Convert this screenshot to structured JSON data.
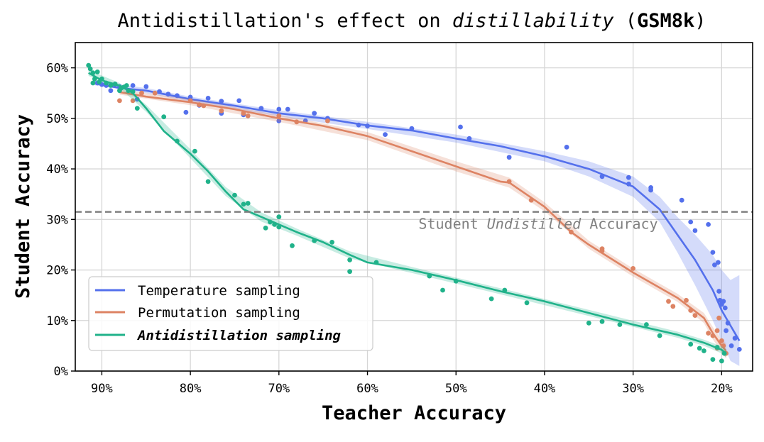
{
  "chart_data": {
    "type": "scatter",
    "title_parts": [
      "Antidistillation's effect on ",
      "distillability",
      " (",
      "GSM8k",
      ")"
    ],
    "xlabel": "Teacher Accuracy",
    "ylabel": "Student Accuracy",
    "xlim": [
      93,
      16.5
    ],
    "ylim": [
      0,
      65
    ],
    "x_ticks": [
      90,
      80,
      70,
      60,
      50,
      40,
      30,
      20
    ],
    "x_tick_labels": [
      "90%",
      "80%",
      "70%",
      "60%",
      "50%",
      "40%",
      "30%",
      "20%"
    ],
    "y_ticks": [
      0,
      10,
      20,
      30,
      40,
      50,
      60
    ],
    "y_tick_labels": [
      "0%",
      "10%",
      "20%",
      "30%",
      "40%",
      "50%",
      "60%"
    ],
    "grid": true,
    "legend_position": "lower-left",
    "reference_line": {
      "y": 31.5,
      "label_parts": [
        "Student ",
        "Undistilled",
        " Accuracy"
      ],
      "color": "#808080"
    },
    "series": [
      {
        "name": "Temperature sampling",
        "color": "#5470ec",
        "line": [
          [
            91,
            57
          ],
          [
            88,
            56
          ],
          [
            85,
            55.5
          ],
          [
            80,
            53.8
          ],
          [
            75,
            52.5
          ],
          [
            70,
            51
          ],
          [
            65,
            50
          ],
          [
            60,
            48.6
          ],
          [
            55,
            47.6
          ],
          [
            50,
            46
          ],
          [
            45,
            44.5
          ],
          [
            40,
            42.5
          ],
          [
            35,
            40
          ],
          [
            30,
            36.5
          ],
          [
            27,
            32
          ],
          [
            25,
            27
          ],
          [
            23,
            22
          ],
          [
            21,
            16
          ],
          [
            20,
            12
          ],
          [
            19,
            9
          ],
          [
            18,
            6
          ]
        ],
        "band": [
          [
            91,
            57.4,
            56.6
          ],
          [
            85,
            56,
            55
          ],
          [
            80,
            54.3,
            53.3
          ],
          [
            70,
            51.6,
            50.4
          ],
          [
            60,
            49.3,
            47.9
          ],
          [
            50,
            46.8,
            45.2
          ],
          [
            40,
            43.5,
            41.5
          ],
          [
            35,
            41.5,
            38.5
          ],
          [
            30,
            38.5,
            34.5
          ],
          [
            27,
            34.5,
            29.5
          ],
          [
            25,
            30.5,
            23.5
          ],
          [
            23,
            27,
            17
          ],
          [
            21,
            23,
            10
          ],
          [
            20,
            20,
            6
          ],
          [
            19,
            18,
            2
          ],
          [
            18,
            19,
            1
          ]
        ],
        "points": [
          [
            90.5,
            57
          ],
          [
            90,
            56.7
          ],
          [
            89.5,
            56.5
          ],
          [
            89,
            55.5
          ],
          [
            88.5,
            56.7
          ],
          [
            88,
            56.3
          ],
          [
            87,
            55.5
          ],
          [
            86.5,
            56.5
          ],
          [
            86,
            53.8
          ],
          [
            85,
            56.3
          ],
          [
            83.5,
            55.3
          ],
          [
            82.5,
            54.8
          ],
          [
            81.5,
            54.5
          ],
          [
            80.5,
            51.2
          ],
          [
            80,
            54.2
          ],
          [
            79,
            52.6
          ],
          [
            78,
            54
          ],
          [
            76.5,
            51
          ],
          [
            76.5,
            53.4
          ],
          [
            74.5,
            53.5
          ],
          [
            74,
            50.7
          ],
          [
            72,
            52
          ],
          [
            70,
            49.5
          ],
          [
            70,
            51.8
          ],
          [
            69,
            51.8
          ],
          [
            67,
            49.5
          ],
          [
            66,
            51
          ],
          [
            64.5,
            50
          ],
          [
            61,
            48.7
          ],
          [
            60,
            48.5
          ],
          [
            58,
            46.8
          ],
          [
            55,
            48
          ],
          [
            49.5,
            48.3
          ],
          [
            48.5,
            46
          ],
          [
            44,
            42.3
          ],
          [
            37.5,
            44.3
          ],
          [
            33.5,
            38.5
          ],
          [
            30.5,
            38.3
          ],
          [
            30.5,
            37
          ],
          [
            28,
            36.3
          ],
          [
            28,
            35.8
          ],
          [
            24.5,
            33.8
          ],
          [
            23.5,
            29.5
          ],
          [
            23,
            27.8
          ],
          [
            21.5,
            29
          ],
          [
            21,
            23.5
          ],
          [
            20.8,
            21
          ],
          [
            20.4,
            21.5
          ],
          [
            20.3,
            15.8
          ],
          [
            20.2,
            14
          ],
          [
            20,
            13.2
          ],
          [
            19.8,
            13.8
          ],
          [
            19.6,
            12.5
          ],
          [
            19.5,
            8
          ],
          [
            19.3,
            9.5
          ],
          [
            18.9,
            5
          ],
          [
            18.5,
            6.5
          ],
          [
            18,
            4.3
          ]
        ]
      },
      {
        "name": "Permutation sampling",
        "color": "#dd8363",
        "line": [
          [
            88,
            55.2
          ],
          [
            85,
            54.3
          ],
          [
            80,
            53.2
          ],
          [
            75,
            51.8
          ],
          [
            70,
            50
          ],
          [
            65,
            48.5
          ],
          [
            60,
            46.5
          ],
          [
            55,
            43.5
          ],
          [
            50,
            40.5
          ],
          [
            45,
            37.5
          ],
          [
            44,
            37.3
          ],
          [
            40,
            32.5
          ],
          [
            37,
            27.5
          ],
          [
            35,
            25
          ],
          [
            30,
            19.5
          ],
          [
            25,
            14.5
          ],
          [
            22,
            10.5
          ],
          [
            21,
            7.5
          ],
          [
            20,
            5
          ],
          [
            19.5,
            4
          ]
        ],
        "band": [
          [
            88,
            55.7,
            54.7
          ],
          [
            80,
            53.8,
            52.6
          ],
          [
            70,
            50.7,
            49.3
          ],
          [
            60,
            47.3,
            45.7
          ],
          [
            50,
            41.5,
            39.5
          ],
          [
            44,
            38.3,
            36.3
          ],
          [
            40,
            33.4,
            31.6
          ],
          [
            35,
            25.8,
            24.2
          ],
          [
            30,
            20.3,
            18.7
          ],
          [
            25,
            15.3,
            13.7
          ],
          [
            22,
            11.5,
            9.5
          ],
          [
            21,
            8.7,
            6.3
          ],
          [
            20,
            6.3,
            3.7
          ],
          [
            19.5,
            5.5,
            2.5
          ]
        ],
        "points": [
          [
            88,
            53.5
          ],
          [
            86.5,
            53.5
          ],
          [
            85.5,
            55
          ],
          [
            84,
            55
          ],
          [
            80,
            53.5
          ],
          [
            79,
            52.7
          ],
          [
            78.5,
            52.5
          ],
          [
            76.5,
            51.5
          ],
          [
            74,
            51
          ],
          [
            73.5,
            50.5
          ],
          [
            70,
            50.5
          ],
          [
            68,
            49.3
          ],
          [
            64.5,
            49.5
          ],
          [
            44,
            37.5
          ],
          [
            41.5,
            33.8
          ],
          [
            37,
            27.5
          ],
          [
            33.5,
            23.8
          ],
          [
            33.5,
            24.2
          ],
          [
            30,
            20.3
          ],
          [
            26,
            13.8
          ],
          [
            25.5,
            12.8
          ],
          [
            24,
            14
          ],
          [
            23.5,
            12
          ],
          [
            23,
            11
          ],
          [
            21.5,
            7.5
          ],
          [
            21,
            7
          ],
          [
            20.5,
            8
          ],
          [
            20.5,
            4.5
          ],
          [
            20.3,
            10.5
          ],
          [
            20,
            6
          ],
          [
            19.8,
            5
          ],
          [
            19.5,
            3.5
          ]
        ]
      },
      {
        "name": "Antidistillation sampling",
        "color": "#20b28a",
        "line": [
          [
            91.5,
            59
          ],
          [
            90,
            57.5
          ],
          [
            88,
            56.5
          ],
          [
            86.5,
            55
          ],
          [
            85,
            52
          ],
          [
            83,
            47.5
          ],
          [
            80,
            43
          ],
          [
            78,
            39.5
          ],
          [
            76,
            35.5
          ],
          [
            74,
            32
          ],
          [
            72,
            30.5
          ],
          [
            70,
            29
          ],
          [
            68,
            27.5
          ],
          [
            65,
            25.5
          ],
          [
            62,
            23
          ],
          [
            60,
            21.5
          ],
          [
            55,
            20
          ],
          [
            50,
            18
          ],
          [
            45,
            15.8
          ],
          [
            40,
            13.8
          ],
          [
            35,
            11.5
          ],
          [
            30,
            9.2
          ],
          [
            25,
            7.2
          ],
          [
            22,
            5.6
          ],
          [
            20,
            4.2
          ],
          [
            19.5,
            3.5
          ]
        ],
        "band": [
          [
            91.5,
            59.6,
            58.4
          ],
          [
            88,
            57,
            56
          ],
          [
            85,
            52.7,
            51.3
          ],
          [
            80,
            43.9,
            42.1
          ],
          [
            76,
            36.4,
            34.6
          ],
          [
            72,
            31.4,
            29.6
          ],
          [
            68,
            28.2,
            26.8
          ],
          [
            62,
            23.7,
            22.3
          ],
          [
            55,
            20.6,
            19.4
          ],
          [
            45,
            16.4,
            15.2
          ],
          [
            35,
            12.1,
            10.9
          ],
          [
            25,
            7.8,
            6.6
          ],
          [
            22,
            6.2,
            5
          ],
          [
            20,
            4.9,
            3.5
          ],
          [
            19.5,
            4.3,
            2.7
          ]
        ],
        "points": [
          [
            91.5,
            60.5
          ],
          [
            91.3,
            59.8
          ],
          [
            91,
            57
          ],
          [
            91,
            59
          ],
          [
            90.8,
            57.8
          ],
          [
            90.5,
            59.2
          ],
          [
            90.3,
            57.2
          ],
          [
            90,
            57.8
          ],
          [
            89.5,
            57
          ],
          [
            89,
            56.5
          ],
          [
            88.5,
            56.8
          ],
          [
            88,
            55.5
          ],
          [
            87.8,
            56
          ],
          [
            87.5,
            56.2
          ],
          [
            87.2,
            56.5
          ],
          [
            87,
            55.5
          ],
          [
            86.5,
            55.3
          ],
          [
            86,
            52
          ],
          [
            83,
            50.3
          ],
          [
            81.5,
            45.5
          ],
          [
            79.5,
            43.5
          ],
          [
            78,
            37.5
          ],
          [
            75,
            34.8
          ],
          [
            74,
            33
          ],
          [
            73.5,
            33.2
          ],
          [
            71.5,
            28.3
          ],
          [
            71,
            29.5
          ],
          [
            70.5,
            29
          ],
          [
            70,
            28.5
          ],
          [
            70,
            30.5
          ],
          [
            68.5,
            24.8
          ],
          [
            66,
            25.8
          ],
          [
            64,
            25.5
          ],
          [
            62,
            19.7
          ],
          [
            62,
            22
          ],
          [
            59,
            21.5
          ],
          [
            53,
            18.8
          ],
          [
            51.5,
            16
          ],
          [
            50,
            17.8
          ],
          [
            46,
            14.3
          ],
          [
            44.5,
            16
          ],
          [
            42,
            13.5
          ],
          [
            35,
            9.5
          ],
          [
            33.5,
            9.8
          ],
          [
            31.5,
            9.2
          ],
          [
            28.5,
            9.2
          ],
          [
            27,
            7
          ],
          [
            23.5,
            5.3
          ],
          [
            22.5,
            4.5
          ],
          [
            22,
            4
          ],
          [
            21,
            2.3
          ],
          [
            20.5,
            4.7
          ],
          [
            20,
            2
          ],
          [
            19.7,
            3.5
          ]
        ]
      }
    ]
  }
}
